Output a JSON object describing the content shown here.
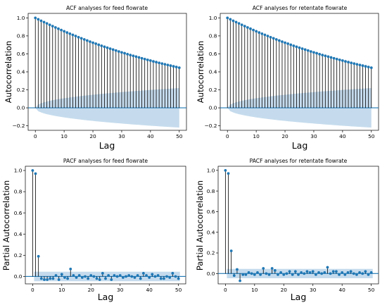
{
  "chart_data": [
    {
      "type": "stem",
      "title": "ACF analyses for feed flowrate",
      "xlabel": "Lag",
      "ylabel": "Autocorrelation",
      "xlim": [
        -2.5,
        52.5
      ],
      "ylim": [
        -0.25,
        1.05
      ],
      "xticks": [
        0,
        10,
        20,
        30,
        40,
        50
      ],
      "yticks": [
        -0.2,
        0.0,
        0.2,
        0.4,
        0.6,
        0.8,
        1.0
      ],
      "ytick_labels": [
        "−0.2",
        "0.0",
        "0.2",
        "0.4",
        "0.6",
        "0.8",
        "1.0"
      ],
      "decay": "acf",
      "confidence_band_end": 0.22,
      "colors": {
        "marker": "#1f77b4",
        "band": "#a6c8e3",
        "stem": "#000000"
      }
    },
    {
      "type": "stem",
      "title": "ACF analyses for retentate flowrate",
      "xlabel": "Lag",
      "ylabel": "Autocorrelation",
      "xlim": [
        -2.5,
        52.5
      ],
      "ylim": [
        -0.25,
        1.05
      ],
      "xticks": [
        0,
        10,
        20,
        30,
        40,
        50
      ],
      "yticks": [
        -0.2,
        0.0,
        0.2,
        0.4,
        0.6,
        0.8,
        1.0
      ],
      "ytick_labels": [
        "−0.2",
        "0.0",
        "0.2",
        "0.4",
        "0.6",
        "0.8",
        "1.0"
      ],
      "decay": "acf",
      "confidence_band_end": 0.22,
      "colors": {
        "marker": "#1f77b4",
        "band": "#a6c8e3",
        "stem": "#000000"
      }
    },
    {
      "type": "stem",
      "title": "PACF analyses for feed flowrate",
      "xlabel": "Lag",
      "ylabel": "Partial Autocorrelation",
      "xlim": [
        -2.5,
        52.5
      ],
      "ylim": [
        -0.07,
        1.04
      ],
      "xticks": [
        0,
        10,
        20,
        30,
        40,
        50
      ],
      "yticks": [
        0.0,
        0.2,
        0.4,
        0.6,
        0.8,
        1.0
      ],
      "ytick_labels": [
        "0.0",
        "0.2",
        "0.4",
        "0.6",
        "0.8",
        "1.0"
      ],
      "confidence_band": 0.045,
      "values": [
        1.0,
        0.97,
        0.19,
        -0.02,
        -0.03,
        -0.03,
        -0.02,
        -0.02,
        0.01,
        -0.03,
        0.02,
        -0.01,
        -0.02,
        0.07,
        0.01,
        -0.01,
        0.01,
        -0.01,
        0.0,
        -0.02,
        0.01,
        0.0,
        -0.02,
        -0.03,
        0.03,
        -0.02,
        0.01,
        -0.03,
        0.01,
        0.0,
        0.01,
        -0.01,
        0.0,
        0.01,
        0.0,
        -0.01,
        0.01,
        -0.02,
        0.03,
        0.01,
        -0.01,
        0.02,
        0.0,
        0.01,
        -0.02,
        -0.02,
        0.0,
        -0.01,
        0.03,
        0.0,
        -0.02
      ],
      "colors": {
        "marker": "#1f77b4",
        "band": "#a6c8e3",
        "stem": "#000000"
      }
    },
    {
      "type": "stem",
      "title": "PACF analyses for retentate flowrate",
      "xlabel": "Lag",
      "ylabel": "Partial Autocorrelation",
      "xlim": [
        -2.5,
        52.5
      ],
      "ylim": [
        -0.1,
        1.04
      ],
      "xticks": [
        0,
        10,
        20,
        30,
        40,
        50
      ],
      "yticks": [
        0.0,
        0.2,
        0.4,
        0.6,
        0.8,
        1.0
      ],
      "ytick_labels": [
        "0.0",
        "0.2",
        "0.4",
        "0.6",
        "0.8",
        "1.0"
      ],
      "confidence_band": 0.045,
      "values": [
        1.0,
        0.97,
        0.22,
        -0.02,
        0.04,
        -0.07,
        -0.01,
        -0.01,
        0.01,
        0.0,
        -0.01,
        0.01,
        -0.01,
        0.05,
        0.0,
        -0.01,
        0.05,
        0.03,
        -0.01,
        0.01,
        -0.01,
        0.0,
        0.02,
        -0.01,
        0.02,
        -0.01,
        0.01,
        0.0,
        0.02,
        0.01,
        0.02,
        -0.01,
        0.01,
        0.0,
        0.01,
        0.06,
        0.0,
        0.02,
        0.02,
        -0.01,
        0.01,
        -0.01,
        0.01,
        0.02,
        0.0,
        -0.01,
        0.01,
        0.0,
        0.02,
        -0.01,
        0.01
      ],
      "colors": {
        "marker": "#1f77b4",
        "band": "#a6c8e3",
        "stem": "#000000"
      }
    }
  ]
}
